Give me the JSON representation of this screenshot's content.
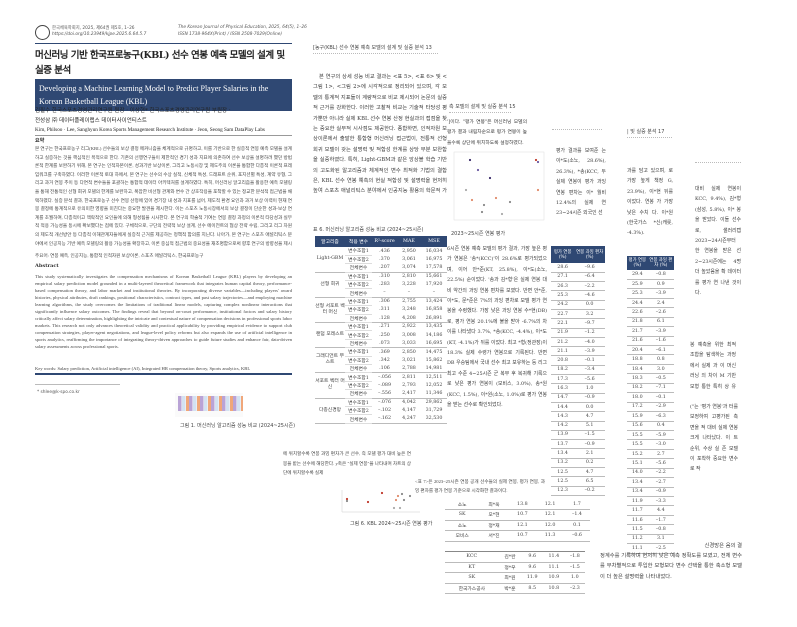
{
  "page1": {
    "journal_ko": "한국체육학회지, 2025, 제64권 제5호, 1–26",
    "doi": "https://doi.org/10.23949/kjpe.2025.6.64.5.7",
    "journal_en": "The Korean Journal of Physical Education, 2025, 64(5), 1–26",
    "issn": "ISSN 1738-964X(Print) / ISSN 2508-7029(Online)",
    "title_line1": "머신러닝 기반 한국프로농구(KBL) 선수 연봉 예측 모델의 설계 및",
    "title_line2": "실증 분석",
    "title_en_line1": "Developing a Machine Learning Model to Predict Player Salaries in the",
    "title_en_line2": "Korean Basketball League (KBL)",
    "authors_ko_line1": "김필수 한국스포츠경영관리연구원 원장 · 이상현* 한국스포츠경영관리연구원 부원장 ·",
    "authors_ko_line2": "전성삼 ㈜ 데이터플레이랩스 데이터사이언티스트",
    "authors_en": "Kim, Philsoo · Lee, Sanghyun Korea Sports Management Research Institute · Jeon, Seong Sam DataPlay Labs",
    "abstract_ko_heading": "요약",
    "abstract_ko": "본 연구는 한국프로농구 리그(KBL) 선수들의 보상 결정 메커니즘을 체계적으로 규명하고, 이를 기반으로 한 실증적 연봉 예측 모델을 설계하고 실증하는 것을 핵심적인 목적으로 한다. 기존의 선행연구들이 제한적인 경기 성과 지표에 의존하여 선수 보상을 설명하려 했던 방법론적 한계를 보완하기 위해, 본 연구는 인적자본이론, 성과기반 보상이론, 그리고 노동시장 및 제도주의 이론을 통합한 다층적 이론적 프레임워크를 구축하였다. 이러한 이론적 토대 하에서, 본 연구는 선수의 수상 실적, 신체적 특성, 드래프트 순위, 포지션별 특성, 계약 유형, 그리고 과거 연봉 추이 등 다면적 변수들을 포괄하는 통합적 데이터 아키텍처를 설계하였다. 특히, 머신러닝 알고리즘을 활용한 예측 모델링을 통해 전통적인 선형 회귀 모델의 한계를 보완하고, 복잡한 비선형 관계와 변수 간 상호작용을 포착할 수 있는 정교한 분석적 접근법을 채택하였다. 실증 분석 결과, 한국프로농구 선수 연봉 산정에 있어 경기장 내 성과 지표를 넘어, 제도적 환경 요인과 과거 보상 이력이 현재 연봉 결정에 통계적으로 유의미한 영향을 미친다는 중요한 발견을 제시한다. 이는 스포츠 노동시장에서의 보상 결정이 단순한 성과-보상 연계를 초월하여, 다층적이고 맥락적인 요인들에 의해 형성됨을 시사한다. 본 연구의 학술적 기여는 연봉 결정 과정의 이론적 타당성과 실무적 적용 가능성을 동시에 확보했다는 점에 있다. 구체적으로, 구단의 전략적 보상 설계, 선수 에이전트의 협상 전략 수립, 그리고 리그 차원의 제도적 개선방안 등 다층적 이해관계자들에게 실증적 근거를 제공하는 정책적 함의를 지닌다. 나아가, 본 연구는 스포츠 애널리틱스 분야에서 인공지능 기반 예측 모델링의 활용 가능성을 확장하고, 이론 중심적 접근법의 중요성을 재조명함으로써 향후 연구의 방향성을 제시한다는 점에서 학문적 의의가 크다.",
    "keywords_ko": "주요어: 연봉 예측, 인공지능, 통합적 인적자원 보상이론, 스포츠 애널리틱스, 한국프로농구",
    "abstract_en_heading": "Abstract",
    "abstract_en": "This study systematically investigates the compensation mechanisms of Korean Basketball League (KBL) players by developing an empirical salary prediction model grounded in a multi-layered theoretical framework that integrates human capital theory, performance-based compensation theory, and labor market and institutional theories. By incorporating diverse variables—including players' award histories, physical attributes, draft rankings, positional characteristics, contract types, and past salary trajectories—and employing machine learning algorithms, the study overcomes the limitations of traditional linear models, capturing complex nonlinear interactions that significantly influence salary outcomes. The findings reveal that beyond on-court performance, institutional factors and salary history critically affect salary determination, highlighting the intricate and contextual nature of compensation decisions in professional sports labor markets. This research not only advances theoretical validity and practical applicability by providing empirical evidence to support club compensation strategies, player-agent negotiations, and league-level policy reforms but also expands the use of artificial intelligence in sports analytics, reaffirming the importance of integrating theory-driven approaches to guide future studies and enhance fair, data-driven salary assessments across professional sports.",
    "keywords_en": "Key words: Salary prediction, Artificial intelligence (AI), Integrated HR compensation theory, Sports analytics, KBL",
    "footnote": "* shlee@k-spo.co.kr",
    "figure1_caption": "그림 1. 머신러닝 알고리즘 성능 비교 (2024~25시즌)"
  },
  "page2": {
    "running_head": "[농구(KBL) 선수 연봉 예측 모델의 설계 및 실증 분석   13",
    "body": "본 연구의 상세 성능 비교 결과는 <표 5>, <표 6> 및 <그림 1>, <그림 2>에 시각적으로 정리되어 있으며, 각 모델의 통계적 지표들이 계량적으로 비교 제시되어 논문의 실증적 근거를 강화한다. 이러한 고찰적 비교는 기술적 타당성 평가뿐만 아니라 실제 KBL 선수 연봉 산정 현실과의 접점을 찾는 중요한 실무적 시사점도 제공한다. 종합하면, 인적자원 보상이론에서 출발한 통합형 머신러닝 접근법이, 전통적 선형 회귀 모델이 갖는 설명력 및 적합성 한계를 상당 부분 보완함을 실증하였다. 특히, Light-GBM과 같은 앙상블 학습 기반의 고도화된 알고리즘과 체계적인 변수 최적화 기법의 결합은, KBL 선수 연봉 예측의 현실 적합성 및 설명력을 현저히 높여 스포츠 애널리틱스 분야에서 인공지능 활용의 학문적 가치와 실무 적용 가능성을 동시에 담보할 가능성을 실증적으로 제시하였다. 이는 향",
    "table_caption": "표 6. 머신러닝 알고리즘 성능 비교 (2024~25시즌)",
    "table_headers": [
      "알고리즘",
      "적용 변수",
      "R²-score",
      "MAE",
      "MSE"
    ],
    "table_groups": [
      {
        "algorithm": "Light-GBM",
        "rows": [
          [
            "변수조합1",
            ".436",
            "2,950",
            "16,034"
          ],
          [
            "변수조합2",
            ".370",
            "3,061",
            "16,975"
          ],
          [
            "전체변수",
            ".207",
            "3,074",
            "17,578"
          ]
        ]
      },
      {
        "algorithm": "선형 회귀",
        "rows": [
          [
            "변수조합1",
            ".310",
            "2,810",
            "15,661"
          ],
          [
            "변수조합2",
            ".283",
            "3,228",
            "17,920"
          ],
          [
            "전체변수",
            "–",
            "–",
            "–"
          ]
        ]
      },
      {
        "algorithm": "선형 서포트 벡터 머신",
        "rows": [
          [
            "변수조합1",
            ".306",
            "2,755",
            "13,424"
          ],
          [
            "변수조합2",
            ".311",
            "3,248",
            "16,858"
          ],
          [
            "전체변수",
            ".128",
            "4,208",
            "26,891"
          ]
        ]
      },
      {
        "algorithm": "랜덤 포레스트",
        "rows": [
          [
            "변수조합1",
            ".271",
            "2,922",
            "13,435"
          ],
          [
            "변수조합2",
            ".250",
            "3,008",
            "14,186"
          ],
          [
            "전체변수",
            ".073",
            "3,033",
            "16,695"
          ]
        ]
      },
      {
        "algorithm": "그래디언트 부스트",
        "rows": [
          [
            "변수조합1",
            ".369",
            "2,850",
            "14,475"
          ],
          [
            "변수조합2",
            ".342",
            "3,021",
            "15,862"
          ],
          [
            "전체변수",
            ".106",
            "2,788",
            "14,981"
          ]
        ]
      },
      {
        "algorithm": "서포트 벡터 머신",
        "rows": [
          [
            "변수조합1",
            "–.056",
            "2,811",
            "12,511"
          ],
          [
            "변수조합2",
            "–.089",
            "2,793",
            "12,052"
          ],
          [
            "전체변수",
            "–.556",
            "2,417",
            "11,346"
          ]
        ]
      },
      {
        "algorithm": "다층신경망",
        "rows": [
          [
            "변수조합1",
            "–.076",
            "4,042",
            "29,862"
          ],
          [
            "변수조합2",
            "–.102",
            "4,147",
            "31,729"
          ],
          [
            "전체변수",
            "–.162",
            "4,247",
            "32,530"
          ]
        ]
      }
    ],
    "bottom_text": "에 위치할수록 연봉 과잉 편차가 큰 선수, 즉 모델 평가 대비 높은 연봉을 받는 선수에 해당한다. y축은 \"실제 연봉\"을 나타내며 차트의 상단에 위치할수록 실제",
    "figure6_caption": "그림 6. KBL 2024~25시즌 연봉 평가"
  },
  "page3": {
    "running_head": "측 모델의 설계 및 실증 분석   15",
    "intro": "']이다. \"평가 연봉\"은 머신러닝 모델의 평가 결과 내림차순으로 평가 연봉이 높을수록 상단에 위치하도록 설정하였다.",
    "figure_caption": "2023~25시즌 연봉 평가",
    "body": "6시즌 연봉 예측 모델의 평가 결과, 가장 높은 평가 연봉은 '송*(KCC)'이 28.6%로 평가되었으며, 이어 안*준(KT, 25.8%), 이*도(소노, 22.5%) 순이었다. '송과 김*형'은 실제 연봉 대비 약간의 과잉 연봉 편차를 보였다. 반면 안*준, 이*도, 문*준은 7%의 과잉 편차로 모델 평가 연봉을 수령했다. 가장 낮은 과잉 연봉 수*현(DB)로, 평가 연봉 20.1%에 불을 받아 -6.7%의 차이를 나타냈다 3.7%, *송(KCC, -4.4%), 이*도(KT, -4.1%)가 뒤를 이었다. 최고 *형(정관장)이 18.3% 실제 수령가 연봉으로 기록된다. 반면 DB 우승팀에서 국내 선수 최고 보유하는 등 리그 최고 수준 4~25시즌 군 복무 후 복귀해 기록으로 낮은 평가 연봉이 (모비스, 3.0%), 송*원(KCC, 1.5%), 이*원(소노, 1.0%)로 평가 연봉을 받는 선수로 확인되었다.",
    "table7_text": "<표 7>은 2023~25시즌 연봉 공개 선수들의 실제 연봉, 평가 연봉, 과잉 편차를 평가 연봉 기준으로 시각화한 결과이다.",
    "table_lower_a": [
      [
        "소노",
        "최*욱",
        "13.8",
        "12.1",
        "1.7"
      ],
      [
        "SK",
        "오*현",
        "10.7",
        "12.1",
        "–1.4"
      ],
      [
        "소노",
        "정*재",
        "12.1",
        "12.0",
        "0.1"
      ],
      [
        "모비스",
        "서*진",
        "10.7",
        "11.3",
        "–0.6"
      ]
    ],
    "table_lower_b": [
      [
        "KCC",
        "김*완",
        "9.6",
        "11.4",
        "–1.8"
      ],
      [
        "KT",
        "정*우",
        "9.6",
        "11.1",
        "–1.5"
      ],
      [
        "SK",
        "최*원",
        "11.9",
        "10.9",
        "1.0"
      ],
      [
        "한국가스공사",
        "박*훈",
        "8.5",
        "10.8",
        "–2.3"
      ]
    ]
  },
  "page4": {
    "body": "평가 결과를 보여준 는 이*도(소노, 28.6%), 26.3%), *송(KCC, 두 실제 연봉이 평가 과잉 연봉 편차는 이* 월비 12.4%의 실제 연 23~24시즌 외국인 선",
    "table_headers": [
      "평가 연봉 (%)",
      "연봉 과잉 편차 (%)"
    ],
    "table_rows": [
      [
        "28.6",
        "–9.6"
      ],
      [
        "27.1",
        "–6.4"
      ],
      [
        "26.3",
        "–2.2"
      ],
      [
        "25.3",
        "–4.6"
      ],
      [
        "24.2",
        "0.0"
      ],
      [
        "22.7",
        "3.2"
      ],
      [
        "22.1",
        "–9.7"
      ],
      [
        "21.9",
        "–1.2"
      ],
      [
        "21.2",
        "–4.0"
      ],
      [
        "21.1",
        "–3.9"
      ],
      [
        "20.8",
        "–0.1"
      ],
      [
        "18.2",
        "–3.4"
      ],
      [
        "17.3",
        "–5.6"
      ],
      [
        "16.3",
        "1.0"
      ],
      [
        "14.7",
        "–0.9"
      ],
      [
        "14.4",
        "0.0"
      ],
      [
        "14.3",
        "4.7"
      ],
      [
        "14.2",
        "5.1"
      ],
      [
        "13.9",
        "–1.5"
      ],
      [
        "13.7",
        "–0.9"
      ],
      [
        "13.4",
        "2.1"
      ],
      [
        "13.2",
        "0.2"
      ],
      [
        "12.5",
        "4.7"
      ],
      [
        "12.5",
        "6.5"
      ],
      [
        "12.3",
        "–0.2"
      ]
    ]
  },
  "page5": {
    "running_head": "| 및 실증 분석   17",
    "body": "과를 담고 있으며, 로 가장 높게 책정 G, 23.9%), 이*현 뒤를 이었다. 연봉 가 가장 낮은 수치 다. 이*원(한국가스 *신(캐롯, -4.3%).",
    "table_headers": [
      "평가 연봉 (%)",
      "연봉 과잉 편차 (%)"
    ],
    "table_rows": [
      [
        "29.4",
        "–0.8"
      ],
      [
        "25.9",
        "0.9"
      ],
      [
        "25.3",
        "–3.9"
      ],
      [
        "24.4",
        "2.4"
      ],
      [
        "22.6",
        "–2.6"
      ],
      [
        "21.8",
        "6.1"
      ],
      [
        "21.7",
        "–3.9"
      ],
      [
        "21.6",
        "–1.6"
      ],
      [
        "20.4",
        "–6.1"
      ],
      [
        "18.8",
        "0.8"
      ],
      [
        "18.4",
        "3.0"
      ],
      [
        "18.3",
        "–0.5"
      ],
      [
        "18.2",
        "–7.1"
      ],
      [
        "18.0",
        "–0.1"
      ],
      [
        "17.2",
        "–2.9"
      ],
      [
        "15.9",
        "–6.3"
      ],
      [
        "15.6",
        "0.4"
      ],
      [
        "15.5",
        "–5.9"
      ],
      [
        "15.5",
        "–3.0"
      ],
      [
        "15.2",
        "2.7"
      ],
      [
        "15.1",
        "–5.6"
      ],
      [
        "14.0",
        "–2.2"
      ],
      [
        "13.4",
        "–2.7"
      ],
      [
        "13.4",
        "–0.9"
      ],
      [
        "11.9",
        "–3.3"
      ],
      [
        "11.7",
        "4.4"
      ],
      [
        "11.6",
        "–1.7"
      ],
      [
        "11.5",
        "–0.8"
      ],
      [
        "11.2",
        "3.1"
      ],
      [
        "11.1",
        "–2.5"
      ]
    ]
  },
  "page6": {
    "body1": "대비 실제 연봉이 KCC, 9.4%), 김*형 (삼성, 5.8%), 이* 봉을 받았다. 이들 선수로, 샐러리캡 2023~24시즌부터 한 연봉을 받은 선 2~23시즌에는 4명 더 높았음을 확 데이터를 평가 연 나낸 것이다.",
    "body2": "봉 예측을 위한 최적 조합을 탐색하는 과정에서 실제 과 이 머신러닝 의 차이 M 기반 모형 통한 특히 상 유의",
    "body3": "(\"는 '평가 연봉'과 터를 보정하여 고평가된 측면을 적 대비 실제 연봉 크게 나타났다. 이 트 순위, 수상 실 존 모델이 포착하 중요한 변수로 작",
    "bottom_line1": "신경망은 음의 결",
    "bottom_rest": "정계수를 기록하며 현저히 낮은 예측 정확도를 보였고, 전체 변수를 무차별적으로 투입한 모형보다 변수 선택을 통한 축소형 모델이 더 높은 설명력을 나타내었다."
  },
  "colors": {
    "navy": "#2f4873",
    "bar_purple": "#b9a3d6",
    "bar_orange": "#f0a77a",
    "bar_blue": "#d3e2f2"
  }
}
